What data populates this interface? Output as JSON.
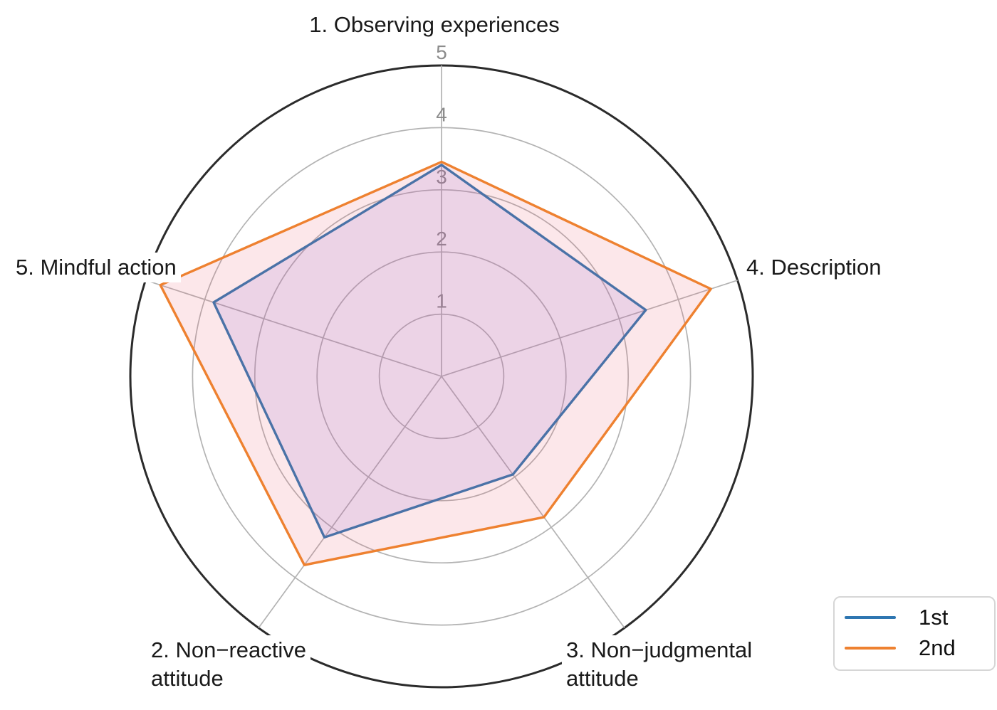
{
  "chart_data": {
    "type": "radar",
    "r_axis": {
      "min": 0,
      "max": 5,
      "ticks": [
        1,
        2,
        3,
        4,
        5
      ]
    },
    "axes": [
      {
        "id": "observing",
        "label": "1. Observing experiences",
        "angle_deg": 90
      },
      {
        "id": "non-reactive",
        "label": "2. Non−reactive\nattitude",
        "angle_deg": 234
      },
      {
        "id": "non-judgmental",
        "label": "3. Non−judgmental\nattitude",
        "angle_deg": 306
      },
      {
        "id": "description",
        "label": "4. Description",
        "angle_deg": 18
      },
      {
        "id": "mindful-action",
        "label": "5. Mindful action",
        "angle_deg": 162
      }
    ],
    "series": [
      {
        "name": "1st",
        "color": "#2e76b1",
        "fill": "rgba(135,100,230,0.15)",
        "values": [
          3.4,
          3.2,
          1.95,
          3.45,
          3.85
        ]
      },
      {
        "name": "2nd",
        "color": "#ee8130",
        "fill": "rgba(235,95,115,0.15)",
        "values": [
          3.45,
          3.75,
          2.8,
          4.55,
          4.75
        ]
      }
    ],
    "legend": {
      "position": "bottom-right",
      "entries": [
        "1st",
        "2nd"
      ]
    },
    "grid": {
      "circle_color": "#b3b3b3",
      "outer_circle_color": "#2b2b2b",
      "tick_label_color": "#8c8c8c"
    }
  }
}
